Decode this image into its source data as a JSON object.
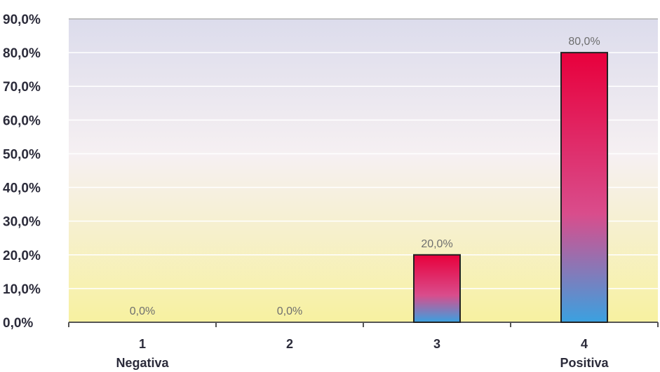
{
  "chart_data": {
    "type": "bar",
    "categories": [
      "1",
      "2",
      "3",
      "4"
    ],
    "category_sublabels": [
      "Negativa",
      "",
      "",
      "Positiva"
    ],
    "values": [
      0,
      0,
      20,
      80
    ],
    "data_labels": [
      "0,0%",
      "0,0%",
      "20,0%",
      "80,0%"
    ],
    "ylim": [
      0,
      90
    ],
    "ytick_step": 10,
    "ytick_labels": [
      "0,0%",
      "10,0%",
      "20,0%",
      "30,0%",
      "40,0%",
      "50,0%",
      "60,0%",
      "70,0%",
      "80,0%",
      "90,0%"
    ],
    "grid": true,
    "legend": "none",
    "colors": {
      "bar_top": "#e8003c",
      "bar_mid": "#d94d8c",
      "bar_bottom": "#3aa1e0",
      "bar_outline": "#222222",
      "plot_top": "#dcdcec",
      "plot_mid": "#f6f0f2",
      "plot_bottom": "#f7f1a0",
      "gridline": "#ffffff",
      "axis": "#555555"
    }
  }
}
